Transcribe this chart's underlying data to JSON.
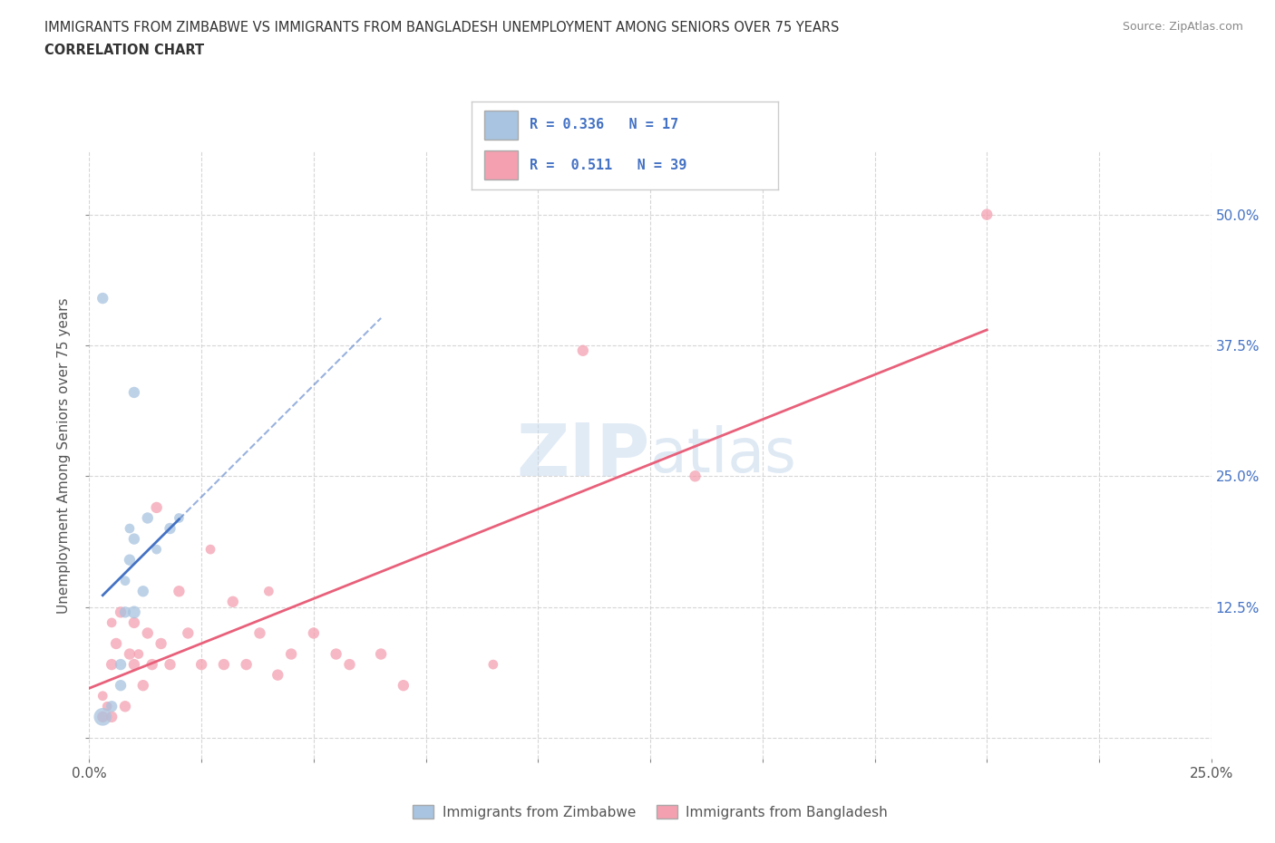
{
  "title_line1": "IMMIGRANTS FROM ZIMBABWE VS IMMIGRANTS FROM BANGLADESH UNEMPLOYMENT AMONG SENIORS OVER 75 YEARS",
  "title_line2": "CORRELATION CHART",
  "source": "Source: ZipAtlas.com",
  "ylabel": "Unemployment Among Seniors over 75 years",
  "xlim": [
    0.0,
    0.25
  ],
  "ylim": [
    -0.02,
    0.56
  ],
  "x_ticks": [
    0.0,
    0.025,
    0.05,
    0.075,
    0.1,
    0.125,
    0.15,
    0.175,
    0.2,
    0.225,
    0.25
  ],
  "y_ticks": [
    0.0,
    0.125,
    0.25,
    0.375,
    0.5
  ],
  "r_zimbabwe": 0.336,
  "n_zimbabwe": 17,
  "r_bangladesh": 0.511,
  "n_bangladesh": 39,
  "color_zimbabwe": "#a8c4e0",
  "color_bangladesh": "#f4a0b0",
  "color_zimbabwe_line": "#4472c4",
  "color_bangladesh_line": "#e8607a",
  "color_label_blue": "#4472c4",
  "watermark": "ZIPatlas",
  "zimbabwe_x": [
    0.003,
    0.005,
    0.007,
    0.007,
    0.008,
    0.008,
    0.009,
    0.009,
    0.01,
    0.01,
    0.012,
    0.013,
    0.015,
    0.018,
    0.02,
    0.01,
    0.003
  ],
  "zimbabwe_y": [
    0.02,
    0.03,
    0.05,
    0.07,
    0.12,
    0.15,
    0.17,
    0.2,
    0.12,
    0.19,
    0.14,
    0.21,
    0.18,
    0.2,
    0.21,
    0.33,
    0.42
  ],
  "zimbabwe_size": [
    200,
    80,
    80,
    80,
    80,
    60,
    80,
    60,
    100,
    80,
    80,
    80,
    60,
    80,
    60,
    80,
    80
  ],
  "bangladesh_x": [
    0.003,
    0.003,
    0.004,
    0.005,
    0.005,
    0.005,
    0.006,
    0.007,
    0.008,
    0.009,
    0.01,
    0.01,
    0.011,
    0.012,
    0.013,
    0.014,
    0.015,
    0.016,
    0.018,
    0.02,
    0.022,
    0.025,
    0.027,
    0.03,
    0.032,
    0.035,
    0.038,
    0.04,
    0.042,
    0.045,
    0.05,
    0.055,
    0.058,
    0.065,
    0.07,
    0.09,
    0.11,
    0.135,
    0.2
  ],
  "bangladesh_y": [
    0.02,
    0.04,
    0.03,
    0.07,
    0.11,
    0.02,
    0.09,
    0.12,
    0.03,
    0.08,
    0.11,
    0.07,
    0.08,
    0.05,
    0.1,
    0.07,
    0.22,
    0.09,
    0.07,
    0.14,
    0.1,
    0.07,
    0.18,
    0.07,
    0.13,
    0.07,
    0.1,
    0.14,
    0.06,
    0.08,
    0.1,
    0.08,
    0.07,
    0.08,
    0.05,
    0.07,
    0.37,
    0.25,
    0.5
  ],
  "bangladesh_size": [
    80,
    60,
    60,
    80,
    60,
    80,
    80,
    80,
    80,
    80,
    80,
    80,
    60,
    80,
    80,
    80,
    80,
    80,
    80,
    80,
    80,
    80,
    60,
    80,
    80,
    80,
    80,
    60,
    80,
    80,
    80,
    80,
    80,
    80,
    80,
    60,
    80,
    80,
    80
  ]
}
